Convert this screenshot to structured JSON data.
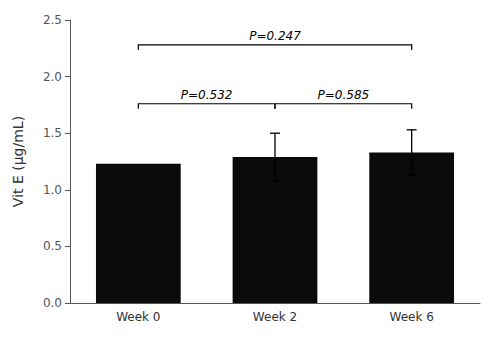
{
  "chart_data": {
    "type": "bar",
    "categories": [
      "Week 0",
      "Week 2",
      "Week 6"
    ],
    "values": [
      1.23,
      1.29,
      1.33
    ],
    "errors": [
      0.0,
      0.21,
      0.2
    ],
    "color": "#0a0a0a",
    "ylabel": "Vit E (µg/mL)",
    "ylim": [
      0.0,
      2.5
    ],
    "yticks": [
      {
        "value": 0,
        "label": "0.0"
      },
      0.5,
      {
        "value": 1,
        "label": "1.0"
      },
      1.5,
      {
        "value": 2,
        "label": "2.0"
      },
      2.5
    ],
    "grid": false,
    "annotations": [
      {
        "from": "Week 0",
        "to": "Week 2",
        "y": 1.76,
        "label": "P=0.532",
        "color": "#000000"
      },
      {
        "from": "Week 2",
        "to": "Week 6",
        "y": 1.76,
        "label": "P=0.585",
        "color": "#000000"
      },
      {
        "from": "Week 0",
        "to": "Week 6",
        "y": 2.28,
        "label": "P=0.247",
        "color": "#000000"
      }
    ]
  }
}
